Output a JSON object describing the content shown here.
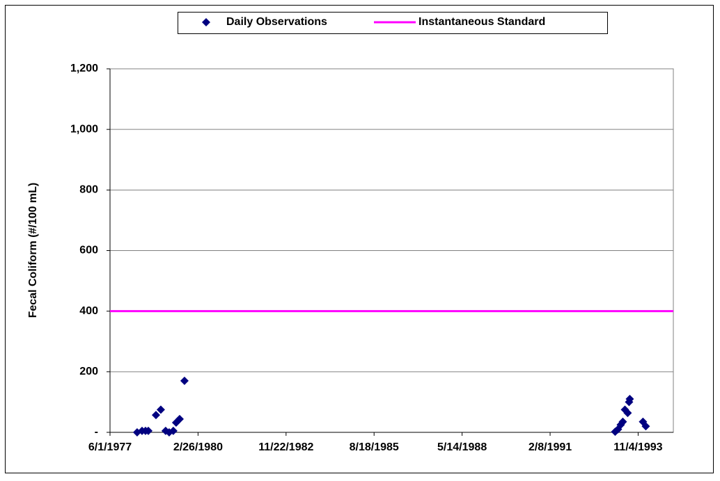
{
  "chart_data": {
    "type": "scatter",
    "ylabel": "Fecal Coliform (#/100 mL)",
    "legend": "top",
    "grid": true,
    "xlim": [
      28277,
      34677
    ],
    "xticks": [
      {
        "value": 28277,
        "label": "6/1/1977"
      },
      {
        "value": 29277,
        "label": "2/26/1980"
      },
      {
        "value": 30277,
        "label": "11/22/1982"
      },
      {
        "value": 31277,
        "label": "8/18/1985"
      },
      {
        "value": 32277,
        "label": "5/14/1988"
      },
      {
        "value": 33277,
        "label": "2/8/1991"
      },
      {
        "value": 34277,
        "label": "11/4/1993"
      }
    ],
    "ylim": [
      0,
      1200
    ],
    "yticks": [
      {
        "value": 0,
        "label": "-"
      },
      200,
      400,
      600,
      800,
      {
        "value": 1000,
        "label": "1,000"
      },
      {
        "value": 1200,
        "label": "1,200"
      }
    ],
    "series": [
      {
        "name": "Daily Observations",
        "color": "#000080",
        "x": [
          28585,
          28641,
          28680,
          28712,
          28799,
          28854,
          28909,
          28949,
          28996,
          29028,
          29068,
          29123,
          34016,
          34048,
          34079,
          34103,
          34127,
          34158,
          34174,
          34182,
          34332,
          34364
        ],
        "values": [
          0,
          5,
          5,
          5,
          57,
          75,
          5,
          0,
          5,
          32,
          44,
          170,
          2,
          10,
          25,
          35,
          75,
          64,
          100,
          110,
          35,
          20
        ]
      }
    ],
    "standard": {
      "name": "Instantaneous Standard",
      "value": 400,
      "color": "#ff00ff"
    }
  }
}
